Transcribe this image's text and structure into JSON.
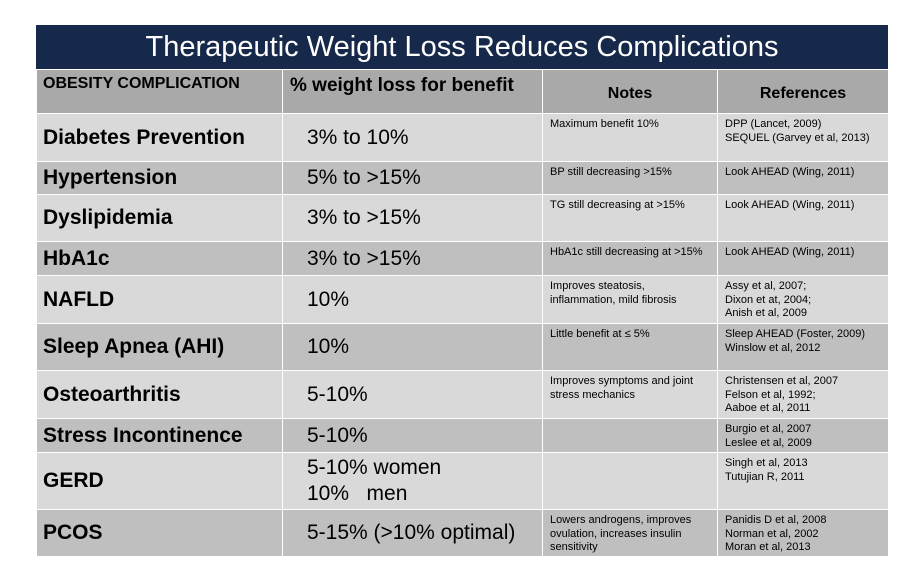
{
  "title": "Therapeutic Weight Loss Reduces Complications",
  "headers": {
    "complication": "OBESITY COMPLICATION",
    "weight_loss": "% weight loss for benefit",
    "notes": "Notes",
    "references": "References"
  },
  "rows": [
    {
      "complication": "Diabetes Prevention",
      "weight_loss": [
        "3% to 10%"
      ],
      "notes": [
        "Maximum benefit 10%"
      ],
      "references": [
        "DPP (Lancet, 2009)",
        "SEQUEL (Garvey et al, 2013)"
      ]
    },
    {
      "complication": "Hypertension",
      "weight_loss": [
        "5% to >15%"
      ],
      "notes": [
        "BP still decreasing >15%"
      ],
      "references": [
        "Look AHEAD (Wing, 2011)"
      ]
    },
    {
      "complication": "Dyslipidemia",
      "weight_loss": [
        "3% to >15%"
      ],
      "notes": [
        "TG still decreasing at >15%"
      ],
      "references": [
        "Look AHEAD (Wing, 2011)"
      ]
    },
    {
      "complication": "HbA1c",
      "weight_loss": [
        "3% to >15%"
      ],
      "notes": [
        "HbA1c still decreasing at >15%"
      ],
      "references": [
        "Look AHEAD (Wing, 2011)"
      ]
    },
    {
      "complication": "NAFLD",
      "weight_loss": [
        "10%"
      ],
      "notes": [
        "Improves steatosis,",
        "inflammation, mild fibrosis"
      ],
      "references": [
        "Assy et al, 2007;",
        "Dixon et at, 2004;",
        "Anish et al, 2009"
      ]
    },
    {
      "complication": "Sleep Apnea (AHI)",
      "weight_loss": [
        "10%"
      ],
      "notes": [
        "Little benefit at ≤ 5%"
      ],
      "references": [
        "Sleep AHEAD (Foster, 2009)",
        "Winslow et al, 2012"
      ]
    },
    {
      "complication": "Osteoarthritis",
      "weight_loss": [
        "5-10%"
      ],
      "notes": [
        "Improves symptoms and joint",
        "stress mechanics"
      ],
      "references": [
        "Christensen et al, 2007",
        "Felson et al, 1992;",
        "Aaboe et al, 2011"
      ]
    },
    {
      "complication": "Stress Incontinence",
      "weight_loss": [
        "5-10%"
      ],
      "notes": [],
      "references": [
        "Burgio et al, 2007",
        "Leslee et al, 2009"
      ]
    },
    {
      "complication": "GERD",
      "weight_loss": [
        "5-10% women",
        "10%   men"
      ],
      "notes": [],
      "references": [
        "Singh et al, 2013",
        "Tutujian R, 2011"
      ]
    },
    {
      "complication": "PCOS",
      "weight_loss": [
        "5-15% (>10% optimal)"
      ],
      "notes": [
        "Lowers androgens, improves",
        "ovulation, increases insulin",
        "sensitivity"
      ],
      "references": [
        "Panidis D et al, 2008",
        "Norman et al, 2002",
        "Moran et al, 2013"
      ]
    }
  ]
}
